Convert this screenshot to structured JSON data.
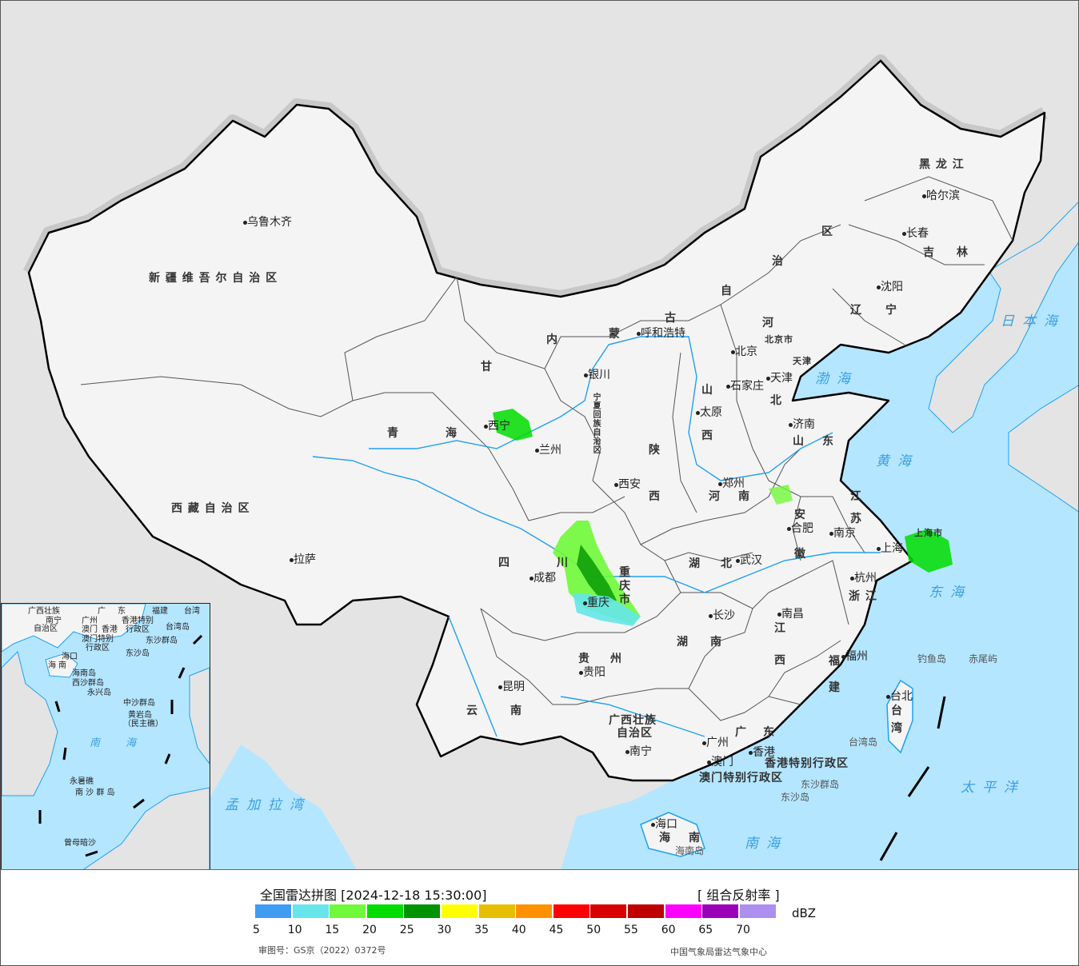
{
  "legend": {
    "title": "全国雷达拼图 [2024-12-18 15:30:00]",
    "product": "[ 组合反射率 ]",
    "unit": "dBZ",
    "colors": [
      "#3f9cf2",
      "#66e6ea",
      "#70f93a",
      "#00dc00",
      "#009300",
      "#ffff00",
      "#e6c000",
      "#ff9000",
      "#ff0000",
      "#d80000",
      "#c00000",
      "#ff00ff",
      "#9900b8",
      "#ad8ff0"
    ],
    "ticks": [
      "5",
      "10",
      "15",
      "20",
      "25",
      "30",
      "35",
      "40",
      "45",
      "50",
      "55",
      "60",
      "65",
      "70"
    ],
    "approval": "审图号：GS京（2022）0372号",
    "source": "中国气象局雷达气象中心"
  },
  "map": {
    "colors": {
      "land": "#f4f4f4",
      "foreign_land": "#e4e4e4",
      "sea": "#b4e6ff",
      "river": "#1ea0f0",
      "border": "#000000"
    },
    "provinces": [
      "新 疆 维 吾 尔 自 治 区",
      "西 藏 自 治 区",
      "青",
      "海",
      "甘",
      "内",
      "蒙",
      "古",
      "自",
      "治",
      "区",
      "黑 龙 江",
      "吉",
      "林",
      "辽",
      "宁",
      "河",
      "北",
      "山",
      "西",
      "陕",
      "西",
      "山",
      "东",
      "河",
      "南",
      "江",
      "苏",
      "安",
      "徽",
      "四",
      "川",
      "重",
      "庆",
      "市",
      "湖",
      "北",
      "湖",
      "南",
      "江",
      "西",
      "浙 江",
      "福",
      "建",
      "贵",
      "州",
      "云",
      "南",
      "广西壮族",
      "自治区",
      "广",
      "东",
      "台",
      "湾",
      "海",
      "南",
      "宁夏回族自治区"
    ],
    "cities": [
      "乌鲁木齐",
      "拉萨",
      "西宁",
      "兰州",
      "银川",
      "呼和浩特",
      "北京",
      "天津",
      "石家庄",
      "太原",
      "济南",
      "郑州",
      "西安",
      "合肥",
      "南京",
      "上海",
      "杭州",
      "武汉",
      "长沙",
      "南昌",
      "福州",
      "台北",
      "成都",
      "重庆",
      "贵阳",
      "昆明",
      "南宁",
      "广州",
      "香港",
      "澳门",
      "海口",
      "哈尔滨",
      "长春",
      "沈阳"
    ],
    "special": [
      "香港特别行政区",
      "澳门特别行政区",
      "北京市",
      "上海市",
      "天津"
    ],
    "seas": [
      "日本海",
      "渤海",
      "黄海",
      "东海",
      "太平洋",
      "南海",
      "孟加拉湾"
    ],
    "islands": [
      "钓鱼岛",
      "赤尾屿",
      "台湾岛",
      "东沙群岛",
      "东沙岛",
      "海南岛"
    ]
  },
  "inset": {
    "labels": [
      "广西壮族",
      "自治区",
      "南宁",
      "广",
      "东",
      "广州",
      "澳门",
      "香港",
      "香港特别",
      "行政区",
      "澳门特别",
      "行政区",
      "台湾岛",
      "东沙群岛",
      "东沙岛",
      "海口",
      "海",
      "南",
      "海南岛",
      "西沙群岛",
      "永兴岛",
      "中沙群岛",
      "黄岩岛",
      "（民主礁）",
      "南",
      "海",
      "永暑礁",
      "南 沙 群 岛",
      "曾母暗沙",
      "台湾",
      "福建"
    ]
  }
}
